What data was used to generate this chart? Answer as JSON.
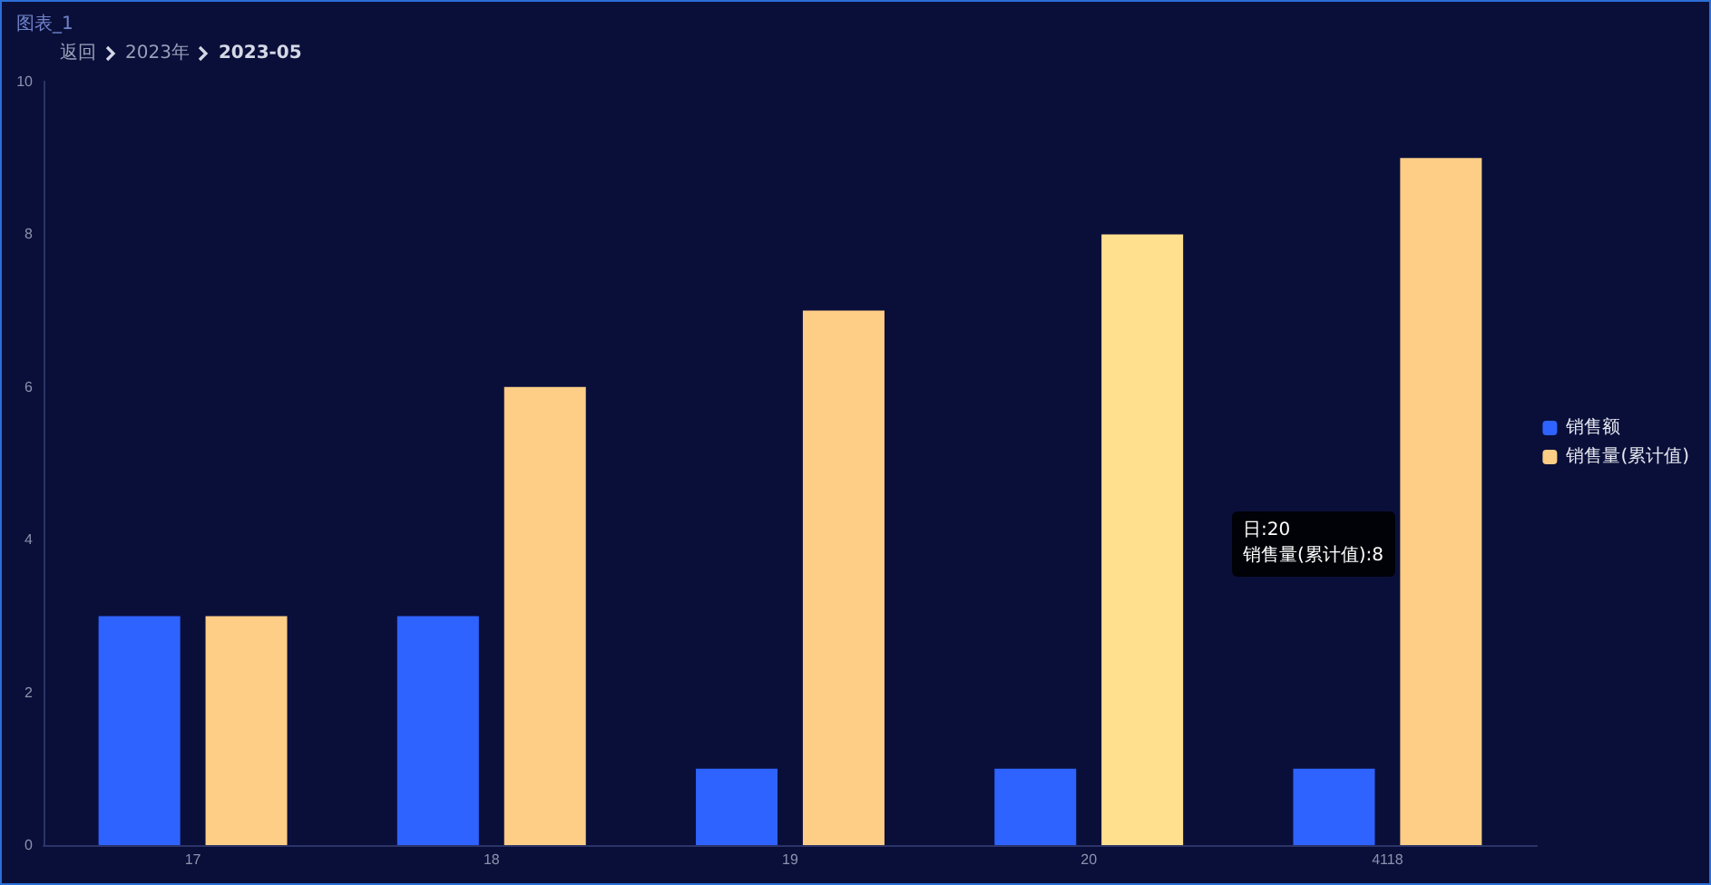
{
  "chart_data": {
    "type": "bar",
    "title": "图表_1",
    "categories": [
      "17",
      "18",
      "19",
      "20",
      "4118"
    ],
    "series": [
      {
        "name": "销售额",
        "color": "#2f63ff",
        "values": [
          3,
          3,
          1,
          1,
          1
        ]
      },
      {
        "name": "销售量(累计值)",
        "color": "#fecd86",
        "colors": [
          "#fecd86",
          "#fecd86",
          "#fecd86",
          "#fee08f",
          "#fecd86"
        ],
        "values": [
          3,
          6,
          7,
          8,
          9
        ]
      }
    ],
    "ylim": [
      0,
      10
    ],
    "yticks": [
      0,
      2,
      4,
      6,
      8,
      10
    ],
    "grid": false,
    "legend": "right",
    "annotations": [
      "返回",
      "2023年",
      "2023-05",
      "日:20\n销售量(累计值):8"
    ]
  }
}
